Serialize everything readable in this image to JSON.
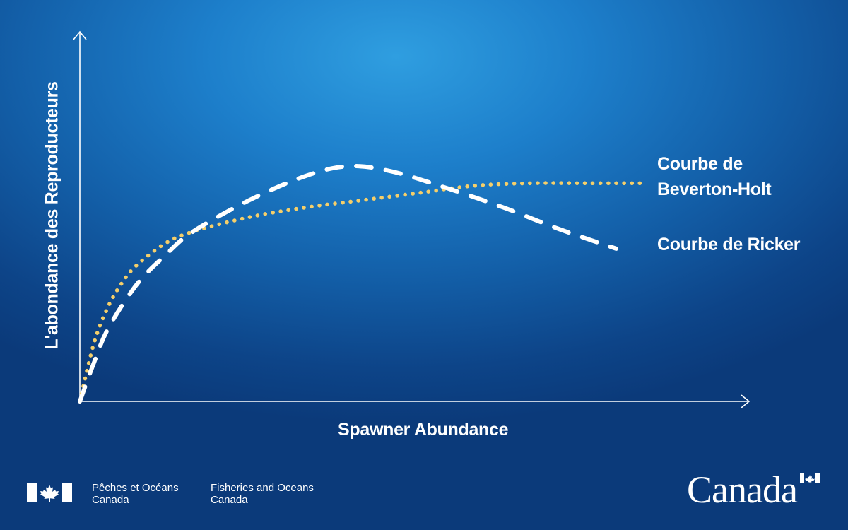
{
  "chart_data": {
    "type": "line",
    "title": "",
    "xlabel": "Spawner Abundance",
    "ylabel": "L'abondance des Reproducteurs",
    "xlim": [
      0,
      10
    ],
    "ylim": [
      0,
      10
    ],
    "grid": false,
    "legend": "labels at right end of curves",
    "series": [
      {
        "name": "Courbe de Beverton-Holt",
        "line_style": "dotted",
        "color": "#f5cf6a",
        "x": [
          0,
          0.25,
          0.5,
          0.75,
          1,
          1.5,
          2,
          3,
          4,
          5,
          6,
          7,
          8,
          9,
          10
        ],
        "y": [
          0,
          2.4,
          3.9,
          4.9,
          5.6,
          6.5,
          7.0,
          7.6,
          8.0,
          8.3,
          8.6,
          8.9,
          9.0,
          9.0,
          9.0
        ]
      },
      {
        "name": "Courbe de Ricker",
        "line_style": "dashed",
        "color": "#ffffff",
        "x": [
          0,
          0.25,
          0.5,
          1,
          1.5,
          2,
          3,
          4,
          4.75,
          5.5,
          6.5,
          7.5,
          8.5,
          9.5
        ],
        "y": [
          0,
          1.6,
          3.0,
          4.8,
          6.0,
          7.0,
          8.3,
          9.3,
          9.7,
          9.5,
          8.8,
          8.0,
          7.1,
          6.3
        ]
      }
    ]
  },
  "footer": {
    "dept_fr_line1": "Pêches et Océans",
    "dept_fr_line2": "Canada",
    "dept_en_line1": "Fisheries and Oceans",
    "dept_en_line2": "Canada",
    "wordmark": "Canada"
  },
  "colors": {
    "background_top": "#2f9ee0",
    "background_bottom": "#0b3a7a",
    "beverton_holt": "#f5cf6a",
    "ricker": "#ffffff",
    "flag_red": "#ffffff"
  }
}
